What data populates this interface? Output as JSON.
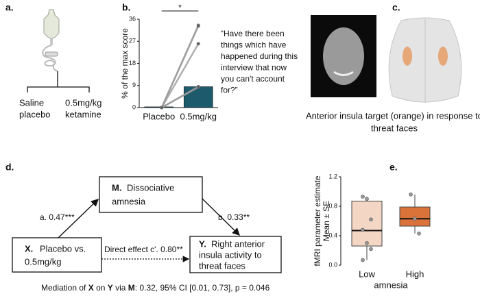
{
  "panel_labels": [
    "a.",
    "b.",
    "c.",
    "d.",
    "e."
  ],
  "panel_a": {
    "left": [
      "Saline",
      "placebo"
    ],
    "right": [
      "0.5mg/kg",
      "ketamine"
    ]
  },
  "panel_c": {
    "caption": [
      "Anterior insula target (orange) in response to",
      "threat faces"
    ]
  },
  "panel_d": {
    "mediator": {
      "key": "M.",
      "lines": [
        "Dissociative",
        "amnesia"
      ]
    },
    "x_node": {
      "key": "X.",
      "lines": [
        "Placebo vs.",
        "0.5mg/kg"
      ]
    },
    "y_node": {
      "key": "Y.",
      "lines": [
        "Right anterior",
        "insula activity to",
        "threat faces"
      ]
    },
    "path_a": "a. 0.47***",
    "path_b": "b. 0.33**",
    "direct": "Direct effect c'. 0.80**",
    "footer": [
      "Mediation of ",
      "X",
      " on ",
      "Y",
      " via ",
      "M",
      ": 0.32, 95% CI [0.01, 0.73], p = 0.046"
    ]
  },
  "chart_data": [
    {
      "type": "bar",
      "ylabel": "% of the max score",
      "categories": [
        "Placebo",
        "0.5mg/kg"
      ],
      "values": [
        0.3,
        8.5
      ],
      "color": "#1d5b6c",
      "ylim": [
        0,
        36
      ],
      "yticks": [
        0,
        9,
        18,
        27,
        36
      ],
      "subjects": [
        [
          0,
          33.5
        ],
        [
          0,
          33.2
        ],
        [
          0,
          26
        ],
        [
          0,
          8.5
        ],
        [
          0,
          8.3
        ]
      ],
      "significance": "*",
      "quote": [
        "“Have there been",
        "things which have",
        "happened during this",
        "interview that now",
        "you can't account",
        "for?”"
      ]
    },
    {
      "type": "box",
      "ylabel": [
        "fMRI parameter estimate",
        "Mean ± SE"
      ],
      "xlabel": "amnesia",
      "categories": [
        "Low",
        "High"
      ],
      "colors": [
        "#f3d6c4",
        "#d97339"
      ],
      "boxes": [
        {
          "low": 0.07,
          "q1": 0.26,
          "median": 0.47,
          "q3": 0.87,
          "high": 0.93
        },
        {
          "low": 0.43,
          "q1": 0.53,
          "median": 0.63,
          "q3": 0.79,
          "high": 0.96
        }
      ],
      "points": [
        [
          0.93,
          0.9,
          0.62,
          0.48,
          0.3,
          0.22,
          0.07
        ],
        [
          0.96,
          0.63,
          0.43
        ]
      ],
      "ylim": [
        0,
        1.2
      ],
      "yticks": [
        {
          "value": 0,
          "label": "0.0"
        },
        0.4,
        0.8,
        1.2
      ]
    }
  ]
}
